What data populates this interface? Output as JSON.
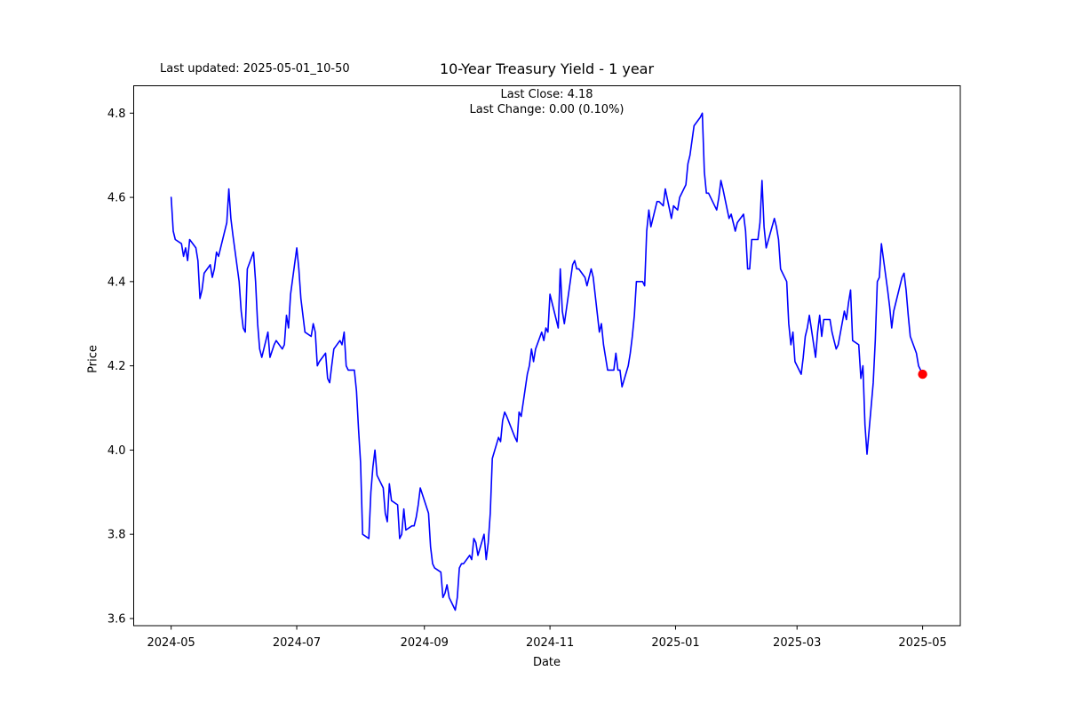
{
  "figure": {
    "last_updated_label": "Last updated: 2025-05-01_10-50",
    "title": "10-Year Treasury Yield - 1 year",
    "subtitle_line1": "Last Close: 4.18",
    "subtitle_line2": "Last Change: 0.00 (0.10%)"
  },
  "chart_data": {
    "type": "line",
    "title": "10-Year Treasury Yield - 1 year",
    "xlabel": "Date",
    "ylabel": "Price",
    "last_close": 4.18,
    "last_change": "0.00 (0.10%)",
    "line_color": "#0000ff",
    "marker_color": "#ff0000",
    "grid": false,
    "legend": null,
    "ylim": [
      3.583,
      4.865
    ],
    "xlim_days_from_start": [
      -18.2,
      383.3
    ],
    "y_ticks": [
      4.8,
      4.6,
      4.4,
      4.2,
      4.0,
      3.8,
      3.6
    ],
    "y_tick_labels": [
      "4.8",
      "4.6",
      "4.4",
      "4.2",
      "4.0",
      "3.8",
      "3.6"
    ],
    "x_ticks": [
      {
        "date": "2024-05-01",
        "label": "2024-05"
      },
      {
        "date": "2024-07-01",
        "label": "2024-07"
      },
      {
        "date": "2024-09-01",
        "label": "2024-09"
      },
      {
        "date": "2024-11-01",
        "label": "2024-11"
      },
      {
        "date": "2025-01-01",
        "label": "2025-01"
      },
      {
        "date": "2025-03-01",
        "label": "2025-03"
      },
      {
        "date": "2025-05-01",
        "label": "2025-05"
      }
    ],
    "marker_on_last_point": true,
    "points": [
      [
        "2024-05-01",
        4.6
      ],
      [
        "2024-05-02",
        4.52
      ],
      [
        "2024-05-03",
        4.5
      ],
      [
        "2024-05-06",
        4.49
      ],
      [
        "2024-05-07",
        4.46
      ],
      [
        "2024-05-08",
        4.48
      ],
      [
        "2024-05-09",
        4.45
      ],
      [
        "2024-05-10",
        4.5
      ],
      [
        "2024-05-13",
        4.48
      ],
      [
        "2024-05-14",
        4.45
      ],
      [
        "2024-05-15",
        4.36
      ],
      [
        "2024-05-16",
        4.38
      ],
      [
        "2024-05-17",
        4.42
      ],
      [
        "2024-05-20",
        4.44
      ],
      [
        "2024-05-21",
        4.41
      ],
      [
        "2024-05-22",
        4.43
      ],
      [
        "2024-05-23",
        4.47
      ],
      [
        "2024-05-24",
        4.46
      ],
      [
        "2024-05-28",
        4.54
      ],
      [
        "2024-05-29",
        4.62
      ],
      [
        "2024-05-30",
        4.55
      ],
      [
        "2024-05-31",
        4.51
      ],
      [
        "2024-06-03",
        4.4
      ],
      [
        "2024-06-04",
        4.33
      ],
      [
        "2024-06-05",
        4.29
      ],
      [
        "2024-06-06",
        4.28
      ],
      [
        "2024-06-07",
        4.43
      ],
      [
        "2024-06-10",
        4.47
      ],
      [
        "2024-06-11",
        4.4
      ],
      [
        "2024-06-12",
        4.3
      ],
      [
        "2024-06-13",
        4.24
      ],
      [
        "2024-06-14",
        4.22
      ],
      [
        "2024-06-17",
        4.28
      ],
      [
        "2024-06-18",
        4.22
      ],
      [
        "2024-06-20",
        4.25
      ],
      [
        "2024-06-21",
        4.26
      ],
      [
        "2024-06-24",
        4.24
      ],
      [
        "2024-06-25",
        4.25
      ],
      [
        "2024-06-26",
        4.32
      ],
      [
        "2024-06-27",
        4.29
      ],
      [
        "2024-06-28",
        4.37
      ],
      [
        "2024-07-01",
        4.48
      ],
      [
        "2024-07-02",
        4.43
      ],
      [
        "2024-07-03",
        4.36
      ],
      [
        "2024-07-05",
        4.28
      ],
      [
        "2024-07-08",
        4.27
      ],
      [
        "2024-07-09",
        4.3
      ],
      [
        "2024-07-10",
        4.28
      ],
      [
        "2024-07-11",
        4.2
      ],
      [
        "2024-07-12",
        4.21
      ],
      [
        "2024-07-15",
        4.23
      ],
      [
        "2024-07-16",
        4.17
      ],
      [
        "2024-07-17",
        4.16
      ],
      [
        "2024-07-18",
        4.2
      ],
      [
        "2024-07-19",
        4.24
      ],
      [
        "2024-07-22",
        4.26
      ],
      [
        "2024-07-23",
        4.25
      ],
      [
        "2024-07-24",
        4.28
      ],
      [
        "2024-07-25",
        4.2
      ],
      [
        "2024-07-26",
        4.19
      ],
      [
        "2024-07-29",
        4.19
      ],
      [
        "2024-07-30",
        4.14
      ],
      [
        "2024-07-31",
        4.05
      ],
      [
        "2024-08-01",
        3.97
      ],
      [
        "2024-08-02",
        3.8
      ],
      [
        "2024-08-05",
        3.79
      ],
      [
        "2024-08-06",
        3.9
      ],
      [
        "2024-08-07",
        3.96
      ],
      [
        "2024-08-08",
        4.0
      ],
      [
        "2024-08-09",
        3.94
      ],
      [
        "2024-08-12",
        3.91
      ],
      [
        "2024-08-13",
        3.85
      ],
      [
        "2024-08-14",
        3.83
      ],
      [
        "2024-08-15",
        3.92
      ],
      [
        "2024-08-16",
        3.88
      ],
      [
        "2024-08-19",
        3.87
      ],
      [
        "2024-08-20",
        3.79
      ],
      [
        "2024-08-21",
        3.8
      ],
      [
        "2024-08-22",
        3.86
      ],
      [
        "2024-08-23",
        3.81
      ],
      [
        "2024-08-26",
        3.82
      ],
      [
        "2024-08-27",
        3.82
      ],
      [
        "2024-08-28",
        3.84
      ],
      [
        "2024-08-29",
        3.87
      ],
      [
        "2024-08-30",
        3.91
      ],
      [
        "2024-09-03",
        3.85
      ],
      [
        "2024-09-04",
        3.77
      ],
      [
        "2024-09-05",
        3.73
      ],
      [
        "2024-09-06",
        3.72
      ],
      [
        "2024-09-09",
        3.71
      ],
      [
        "2024-09-10",
        3.65
      ],
      [
        "2024-09-11",
        3.66
      ],
      [
        "2024-09-12",
        3.68
      ],
      [
        "2024-09-13",
        3.65
      ],
      [
        "2024-09-16",
        3.62
      ],
      [
        "2024-09-17",
        3.65
      ],
      [
        "2024-09-18",
        3.72
      ],
      [
        "2024-09-19",
        3.73
      ],
      [
        "2024-09-20",
        3.73
      ],
      [
        "2024-09-23",
        3.75
      ],
      [
        "2024-09-24",
        3.74
      ],
      [
        "2024-09-25",
        3.79
      ],
      [
        "2024-09-26",
        3.78
      ],
      [
        "2024-09-27",
        3.75
      ],
      [
        "2024-09-30",
        3.8
      ],
      [
        "2024-10-01",
        3.74
      ],
      [
        "2024-10-02",
        3.78
      ],
      [
        "2024-10-03",
        3.85
      ],
      [
        "2024-10-04",
        3.98
      ],
      [
        "2024-10-07",
        4.03
      ],
      [
        "2024-10-08",
        4.02
      ],
      [
        "2024-10-09",
        4.07
      ],
      [
        "2024-10-10",
        4.09
      ],
      [
        "2024-10-11",
        4.08
      ],
      [
        "2024-10-15",
        4.03
      ],
      [
        "2024-10-16",
        4.02
      ],
      [
        "2024-10-17",
        4.09
      ],
      [
        "2024-10-18",
        4.08
      ],
      [
        "2024-10-21",
        4.18
      ],
      [
        "2024-10-22",
        4.2
      ],
      [
        "2024-10-23",
        4.24
      ],
      [
        "2024-10-24",
        4.21
      ],
      [
        "2024-10-25",
        4.24
      ],
      [
        "2024-10-28",
        4.28
      ],
      [
        "2024-10-29",
        4.26
      ],
      [
        "2024-10-30",
        4.29
      ],
      [
        "2024-10-31",
        4.28
      ],
      [
        "2024-11-01",
        4.37
      ],
      [
        "2024-11-04",
        4.31
      ],
      [
        "2024-11-05",
        4.29
      ],
      [
        "2024-11-06",
        4.43
      ],
      [
        "2024-11-07",
        4.33
      ],
      [
        "2024-11-08",
        4.3
      ],
      [
        "2024-11-12",
        4.44
      ],
      [
        "2024-11-13",
        4.45
      ],
      [
        "2024-11-14",
        4.43
      ],
      [
        "2024-11-15",
        4.43
      ],
      [
        "2024-11-18",
        4.41
      ],
      [
        "2024-11-19",
        4.39
      ],
      [
        "2024-11-20",
        4.41
      ],
      [
        "2024-11-21",
        4.43
      ],
      [
        "2024-11-22",
        4.41
      ],
      [
        "2024-11-25",
        4.28
      ],
      [
        "2024-11-26",
        4.3
      ],
      [
        "2024-11-27",
        4.25
      ],
      [
        "2024-11-29",
        4.19
      ],
      [
        "2024-12-02",
        4.19
      ],
      [
        "2024-12-03",
        4.23
      ],
      [
        "2024-12-04",
        4.19
      ],
      [
        "2024-12-05",
        4.19
      ],
      [
        "2024-12-06",
        4.15
      ],
      [
        "2024-12-09",
        4.2
      ],
      [
        "2024-12-10",
        4.23
      ],
      [
        "2024-12-11",
        4.27
      ],
      [
        "2024-12-12",
        4.32
      ],
      [
        "2024-12-13",
        4.4
      ],
      [
        "2024-12-16",
        4.4
      ],
      [
        "2024-12-17",
        4.39
      ],
      [
        "2024-12-18",
        4.52
      ],
      [
        "2024-12-19",
        4.57
      ],
      [
        "2024-12-20",
        4.53
      ],
      [
        "2024-12-23",
        4.59
      ],
      [
        "2024-12-24",
        4.59
      ],
      [
        "2024-12-26",
        4.58
      ],
      [
        "2024-12-27",
        4.62
      ],
      [
        "2024-12-30",
        4.55
      ],
      [
        "2024-12-31",
        4.58
      ],
      [
        "2025-01-02",
        4.57
      ],
      [
        "2025-01-03",
        4.6
      ],
      [
        "2025-01-06",
        4.63
      ],
      [
        "2025-01-07",
        4.68
      ],
      [
        "2025-01-08",
        4.7
      ],
      [
        "2025-01-10",
        4.77
      ],
      [
        "2025-01-13",
        4.79
      ],
      [
        "2025-01-14",
        4.8
      ],
      [
        "2025-01-15",
        4.66
      ],
      [
        "2025-01-16",
        4.61
      ],
      [
        "2025-01-17",
        4.61
      ],
      [
        "2025-01-21",
        4.57
      ],
      [
        "2025-01-22",
        4.6
      ],
      [
        "2025-01-23",
        4.64
      ],
      [
        "2025-01-24",
        4.62
      ],
      [
        "2025-01-27",
        4.55
      ],
      [
        "2025-01-28",
        4.56
      ],
      [
        "2025-01-29",
        4.54
      ],
      [
        "2025-01-30",
        4.52
      ],
      [
        "2025-01-31",
        4.54
      ],
      [
        "2025-02-03",
        4.56
      ],
      [
        "2025-02-04",
        4.52
      ],
      [
        "2025-02-05",
        4.43
      ],
      [
        "2025-02-06",
        4.43
      ],
      [
        "2025-02-07",
        4.5
      ],
      [
        "2025-02-10",
        4.5
      ],
      [
        "2025-02-11",
        4.54
      ],
      [
        "2025-02-12",
        4.64
      ],
      [
        "2025-02-13",
        4.53
      ],
      [
        "2025-02-14",
        4.48
      ],
      [
        "2025-02-18",
        4.55
      ],
      [
        "2025-02-19",
        4.53
      ],
      [
        "2025-02-20",
        4.5
      ],
      [
        "2025-02-21",
        4.43
      ],
      [
        "2025-02-24",
        4.4
      ],
      [
        "2025-02-25",
        4.3
      ],
      [
        "2025-02-26",
        4.25
      ],
      [
        "2025-02-27",
        4.28
      ],
      [
        "2025-02-28",
        4.21
      ],
      [
        "2025-03-03",
        4.18
      ],
      [
        "2025-03-04",
        4.22
      ],
      [
        "2025-03-05",
        4.27
      ],
      [
        "2025-03-06",
        4.29
      ],
      [
        "2025-03-07",
        4.32
      ],
      [
        "2025-03-10",
        4.22
      ],
      [
        "2025-03-11",
        4.28
      ],
      [
        "2025-03-12",
        4.32
      ],
      [
        "2025-03-13",
        4.27
      ],
      [
        "2025-03-14",
        4.31
      ],
      [
        "2025-03-17",
        4.31
      ],
      [
        "2025-03-18",
        4.28
      ],
      [
        "2025-03-19",
        4.26
      ],
      [
        "2025-03-20",
        4.24
      ],
      [
        "2025-03-21",
        4.25
      ],
      [
        "2025-03-24",
        4.33
      ],
      [
        "2025-03-25",
        4.31
      ],
      [
        "2025-03-26",
        4.35
      ],
      [
        "2025-03-27",
        4.38
      ],
      [
        "2025-03-28",
        4.26
      ],
      [
        "2025-03-31",
        4.25
      ],
      [
        "2025-04-01",
        4.17
      ],
      [
        "2025-04-02",
        4.2
      ],
      [
        "2025-04-03",
        4.06
      ],
      [
        "2025-04-04",
        3.99
      ],
      [
        "2025-04-07",
        4.16
      ],
      [
        "2025-04-08",
        4.26
      ],
      [
        "2025-04-09",
        4.4
      ],
      [
        "2025-04-10",
        4.41
      ],
      [
        "2025-04-11",
        4.49
      ],
      [
        "2025-04-14",
        4.38
      ],
      [
        "2025-04-15",
        4.34
      ],
      [
        "2025-04-16",
        4.29
      ],
      [
        "2025-04-17",
        4.33
      ],
      [
        "2025-04-21",
        4.41
      ],
      [
        "2025-04-22",
        4.42
      ],
      [
        "2025-04-23",
        4.38
      ],
      [
        "2025-04-24",
        4.32
      ],
      [
        "2025-04-25",
        4.27
      ],
      [
        "2025-04-28",
        4.23
      ],
      [
        "2025-04-29",
        4.2
      ],
      [
        "2025-04-30",
        4.19
      ],
      [
        "2025-05-01",
        4.18
      ]
    ]
  }
}
